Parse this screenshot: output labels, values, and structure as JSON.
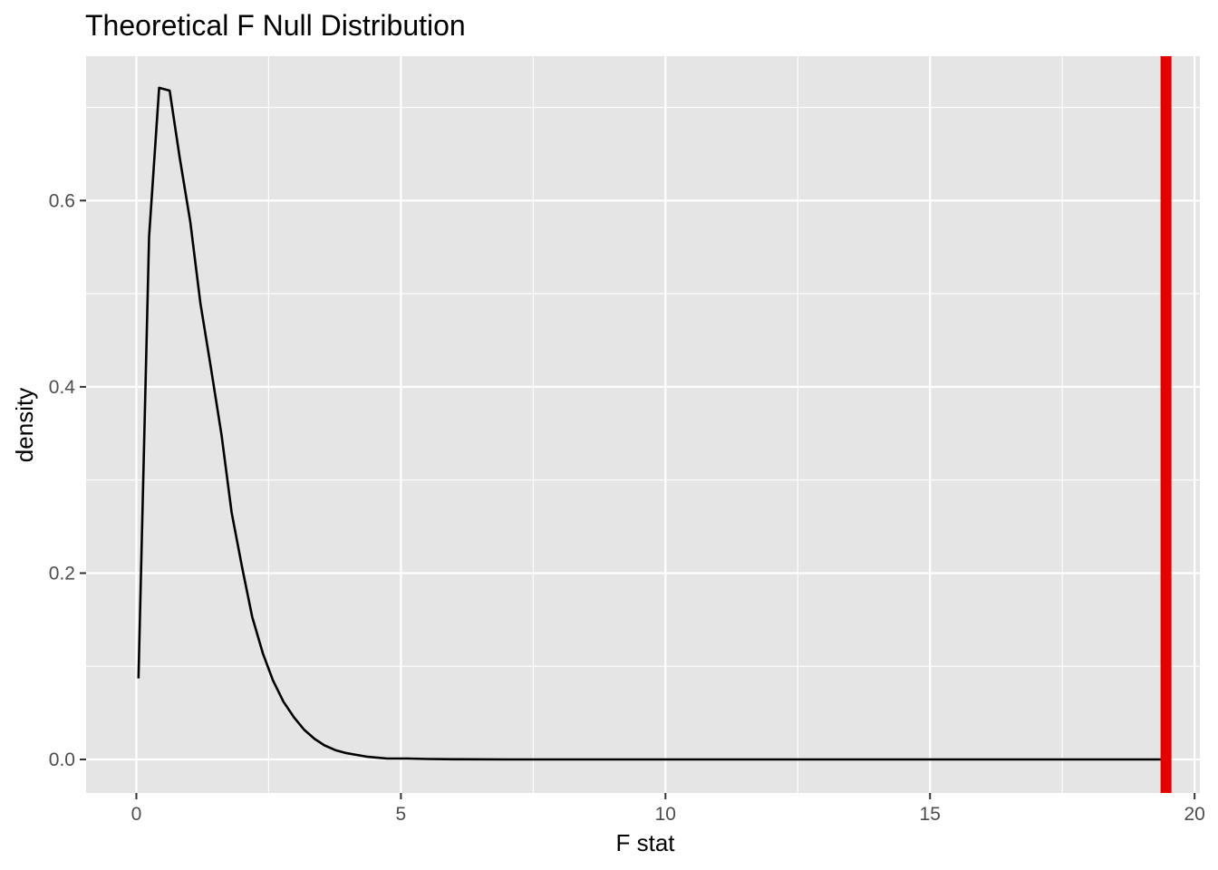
{
  "chart_data": {
    "type": "line",
    "title": "Theoretical F Null Distribution",
    "xlabel": "F stat",
    "ylabel": "density",
    "xlim": [
      -0.95,
      20.1
    ],
    "ylim": [
      -0.036,
      0.755
    ],
    "x_ticks": [
      0,
      5,
      10,
      15,
      20
    ],
    "x_tick_labels": [
      "0",
      "5",
      "10",
      "15",
      "20"
    ],
    "y_ticks": [
      0.0,
      0.2,
      0.4,
      0.6
    ],
    "y_tick_labels": [
      "0.0",
      "0.2",
      "0.4",
      "0.6"
    ],
    "grid": true,
    "background": "#e5e5e5",
    "grid_color": "#ffffff",
    "series": [
      {
        "color": "#000000",
        "x": [
          0.04,
          0.24,
          0.43,
          0.63,
          0.82,
          1.02,
          1.21,
          1.41,
          1.61,
          1.8,
          2.0,
          2.19,
          2.39,
          2.58,
          2.78,
          2.98,
          3.17,
          3.37,
          3.56,
          3.76,
          3.95,
          4.15,
          4.35,
          4.54,
          4.74,
          4.93,
          5.13,
          5.5,
          6.0,
          7.0,
          8.0,
          10.0,
          12.0,
          15.0,
          17.5,
          19.46
        ],
        "y": [
          0.087,
          0.561,
          0.721,
          0.718,
          0.646,
          0.577,
          0.49,
          0.42,
          0.348,
          0.265,
          0.206,
          0.153,
          0.114,
          0.085,
          0.062,
          0.045,
          0.032,
          0.022,
          0.015,
          0.01,
          0.007,
          0.005,
          0.003,
          0.002,
          0.001,
          0.001,
          0.001,
          0.0005,
          0.0002,
          0.0,
          0.0,
          0.0,
          0.0,
          0.0,
          0.0,
          0.0
        ]
      }
    ],
    "vline": {
      "x": 19.46,
      "color": "#e50000"
    }
  }
}
